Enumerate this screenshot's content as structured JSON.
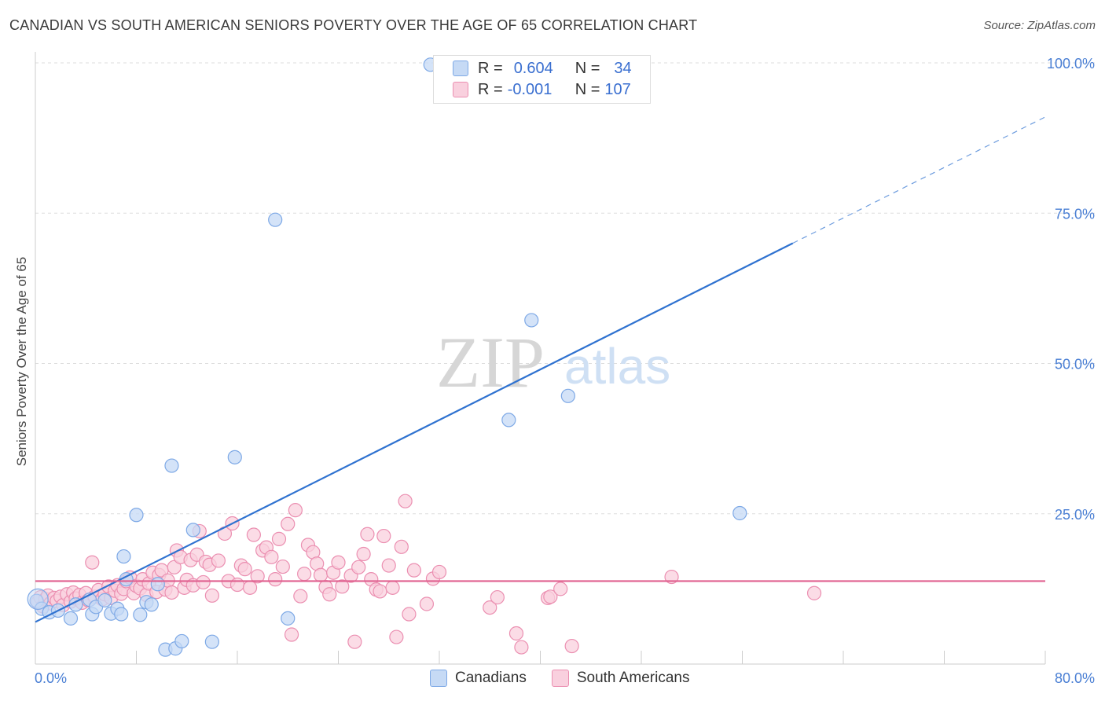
{
  "title": "CANADIAN VS SOUTH AMERICAN SENIORS POVERTY OVER THE AGE OF 65 CORRELATION CHART",
  "source": "Source: ZipAtlas.com",
  "watermark": {
    "zip": "ZIP",
    "atlas": "atlas"
  },
  "legend_top": [
    {
      "r_label": "R =",
      "r_value": "0.604",
      "n_label": "N =",
      "n_value": "34",
      "color": "#7ea9e6",
      "fill": "#c6daf5"
    },
    {
      "r_label": "R =",
      "r_value": "-0.001",
      "n_label": "N =",
      "n_value": "107",
      "color": "#eb8fb1",
      "fill": "#f9d0de"
    }
  ],
  "legend_bottom": [
    {
      "label": "Canadians",
      "color": "#7ea9e6",
      "fill": "#c6daf5"
    },
    {
      "label": "South Americans",
      "color": "#eb8fb1",
      "fill": "#f9d0de"
    }
  ],
  "chart_data": {
    "type": "scatter",
    "title": "CANADIAN VS SOUTH AMERICAN SENIORS POVERTY OVER THE AGE OF 65 CORRELATION CHART",
    "xlabel": "",
    "ylabel": "Seniors Poverty Over the Age of 65",
    "xlim": [
      0,
      80
    ],
    "ylim": [
      0,
      100
    ],
    "x_tick_labels": [
      "0.0%",
      "80.0%"
    ],
    "y_tick_labels": [
      {
        "value": 25,
        "label": "25.0%"
      },
      {
        "value": 50,
        "label": "50.0%"
      },
      {
        "value": 75,
        "label": "75.0%"
      },
      {
        "value": 100,
        "label": "100.0%"
      }
    ],
    "grid": true,
    "series": [
      {
        "name": "Canadians",
        "color": "#7ea9e6",
        "fill": "#c6daf5",
        "trend": {
          "x1": 0,
          "y1": 7,
          "x2": 60,
          "y2": 70,
          "x_end": 80,
          "y_end": 91
        },
        "points": [
          [
            0.1,
            10.5
          ],
          [
            0.5,
            9.2
          ],
          [
            1.1,
            8.6
          ],
          [
            1.8,
            8.9
          ],
          [
            2.8,
            7.6
          ],
          [
            3.2,
            9.9
          ],
          [
            4.3,
            10.7
          ],
          [
            4.5,
            8.3
          ],
          [
            4.8,
            9.5
          ],
          [
            5.5,
            10.6
          ],
          [
            6.0,
            8.4
          ],
          [
            6.5,
            9.2
          ],
          [
            6.8,
            8.3
          ],
          [
            7.0,
            17.9
          ],
          [
            7.2,
            14.1
          ],
          [
            8.0,
            24.8
          ],
          [
            8.3,
            8.2
          ],
          [
            8.8,
            10.3
          ],
          [
            9.2,
            9.9
          ],
          [
            9.7,
            13.3
          ],
          [
            10.3,
            2.4
          ],
          [
            10.8,
            33.0
          ],
          [
            11.1,
            2.6
          ],
          [
            11.6,
            3.8
          ],
          [
            12.5,
            22.3
          ],
          [
            14.0,
            3.7
          ],
          [
            15.8,
            34.4
          ],
          [
            19.0,
            73.9
          ],
          [
            20.0,
            7.6
          ],
          [
            31.3,
            99.7
          ],
          [
            37.5,
            40.6
          ],
          [
            39.3,
            57.2
          ],
          [
            42.2,
            44.6
          ],
          [
            55.8,
            25.1
          ]
        ]
      },
      {
        "name": "South Americans",
        "color": "#eb8fb1",
        "fill": "#f9d0de",
        "trend": {
          "x1": 0,
          "y1": 13.8,
          "x2": 80,
          "y2": 13.8
        },
        "points": [
          [
            0.2,
            10.3
          ],
          [
            0.4,
            11.1
          ],
          [
            0.6,
            9.6
          ],
          [
            0.8,
            10.8
          ],
          [
            1.0,
            11.4
          ],
          [
            1.2,
            10.1
          ],
          [
            1.5,
            11.0
          ],
          [
            1.7,
            10.5
          ],
          [
            2.0,
            11.2
          ],
          [
            2.2,
            9.8
          ],
          [
            2.5,
            11.6
          ],
          [
            2.8,
            10.4
          ],
          [
            3.0,
            11.9
          ],
          [
            3.2,
            10.9
          ],
          [
            3.5,
            11.5
          ],
          [
            3.7,
            10.2
          ],
          [
            4.0,
            11.8
          ],
          [
            4.2,
            10.6
          ],
          [
            4.5,
            16.9
          ],
          [
            4.7,
            11.2
          ],
          [
            5.0,
            12.3
          ],
          [
            5.3,
            10.8
          ],
          [
            5.5,
            11.6
          ],
          [
            5.8,
            12.9
          ],
          [
            6.0,
            11.0
          ],
          [
            6.3,
            12.2
          ],
          [
            6.5,
            13.1
          ],
          [
            6.8,
            11.7
          ],
          [
            7.0,
            12.5
          ],
          [
            7.2,
            13.8
          ],
          [
            7.5,
            14.4
          ],
          [
            7.8,
            11.8
          ],
          [
            8.0,
            13.0
          ],
          [
            8.3,
            12.6
          ],
          [
            8.5,
            14.1
          ],
          [
            8.8,
            11.5
          ],
          [
            9.0,
            13.4
          ],
          [
            9.3,
            15.2
          ],
          [
            9.6,
            12.0
          ],
          [
            9.8,
            14.8
          ],
          [
            10.0,
            15.6
          ],
          [
            10.3,
            12.4
          ],
          [
            10.5,
            13.9
          ],
          [
            10.8,
            11.9
          ],
          [
            11.0,
            16.1
          ],
          [
            11.2,
            18.9
          ],
          [
            11.5,
            17.8
          ],
          [
            11.8,
            12.7
          ],
          [
            12.0,
            14.0
          ],
          [
            12.3,
            17.3
          ],
          [
            12.5,
            13.1
          ],
          [
            12.8,
            18.2
          ],
          [
            13.0,
            22.1
          ],
          [
            13.3,
            13.6
          ],
          [
            13.5,
            17.0
          ],
          [
            13.8,
            16.5
          ],
          [
            14.0,
            11.4
          ],
          [
            14.5,
            17.2
          ],
          [
            15.0,
            21.7
          ],
          [
            15.3,
            13.8
          ],
          [
            15.6,
            23.4
          ],
          [
            16.0,
            13.2
          ],
          [
            16.3,
            16.4
          ],
          [
            16.6,
            15.8
          ],
          [
            17.0,
            12.7
          ],
          [
            17.3,
            21.5
          ],
          [
            17.6,
            14.6
          ],
          [
            18.0,
            18.9
          ],
          [
            18.3,
            19.4
          ],
          [
            18.7,
            17.8
          ],
          [
            19.0,
            14.1
          ],
          [
            19.3,
            20.8
          ],
          [
            19.6,
            16.2
          ],
          [
            20.0,
            23.3
          ],
          [
            20.3,
            4.9
          ],
          [
            20.6,
            25.6
          ],
          [
            21.0,
            11.3
          ],
          [
            21.3,
            15.0
          ],
          [
            21.6,
            19.8
          ],
          [
            22.0,
            18.6
          ],
          [
            22.3,
            16.7
          ],
          [
            22.6,
            14.8
          ],
          [
            23.0,
            12.8
          ],
          [
            23.3,
            11.6
          ],
          [
            23.6,
            15.2
          ],
          [
            24.0,
            16.9
          ],
          [
            24.3,
            12.9
          ],
          [
            25.0,
            14.7
          ],
          [
            25.3,
            3.7
          ],
          [
            25.6,
            16.1
          ],
          [
            26.0,
            18.3
          ],
          [
            26.3,
            21.6
          ],
          [
            26.6,
            14.1
          ],
          [
            27.0,
            12.4
          ],
          [
            27.3,
            12.1
          ],
          [
            27.6,
            21.3
          ],
          [
            28.0,
            16.4
          ],
          [
            28.3,
            12.7
          ],
          [
            28.6,
            4.5
          ],
          [
            29.0,
            19.5
          ],
          [
            29.3,
            27.1
          ],
          [
            29.6,
            8.3
          ],
          [
            30.0,
            15.6
          ],
          [
            31.0,
            10.0
          ],
          [
            31.5,
            14.2
          ],
          [
            32.0,
            15.3
          ],
          [
            36.0,
            9.4
          ]
        ],
        "extra_points": [
          [
            36.6,
            11.1
          ],
          [
            38.1,
            5.1
          ],
          [
            38.5,
            2.8
          ],
          [
            40.6,
            11.0
          ],
          [
            40.8,
            11.2
          ],
          [
            41.6,
            12.5
          ],
          [
            42.5,
            3.0
          ],
          [
            50.4,
            14.5
          ],
          [
            61.7,
            11.8
          ]
        ]
      }
    ]
  }
}
